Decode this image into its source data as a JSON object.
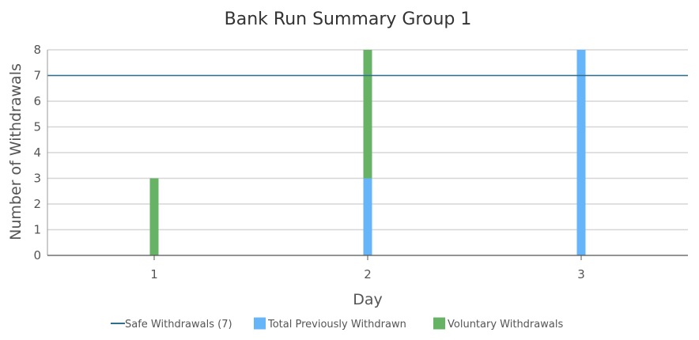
{
  "chart_data": {
    "type": "bar",
    "stacked": true,
    "title": "Bank Run Summary Group 1",
    "xlabel": "Day",
    "ylabel": "Number of Withdrawals",
    "categories": [
      "1",
      "2",
      "3"
    ],
    "ylim": [
      0,
      8
    ],
    "yticks": [
      "0",
      "1",
      "2",
      "3",
      "4",
      "5",
      "6",
      "7",
      "8"
    ],
    "grid": true,
    "legend_position": "bottom",
    "reference_line": {
      "name": "Safe Withdrawals (7)",
      "value": 7,
      "color": "#2e6f8e"
    },
    "series": [
      {
        "name": "Total Previously Withdrawn",
        "values": [
          0,
          3,
          8
        ],
        "color": "#66b5f8"
      },
      {
        "name": "Voluntary Withdrawals",
        "values": [
          3,
          5,
          0
        ],
        "color": "#66b366"
      }
    ]
  }
}
